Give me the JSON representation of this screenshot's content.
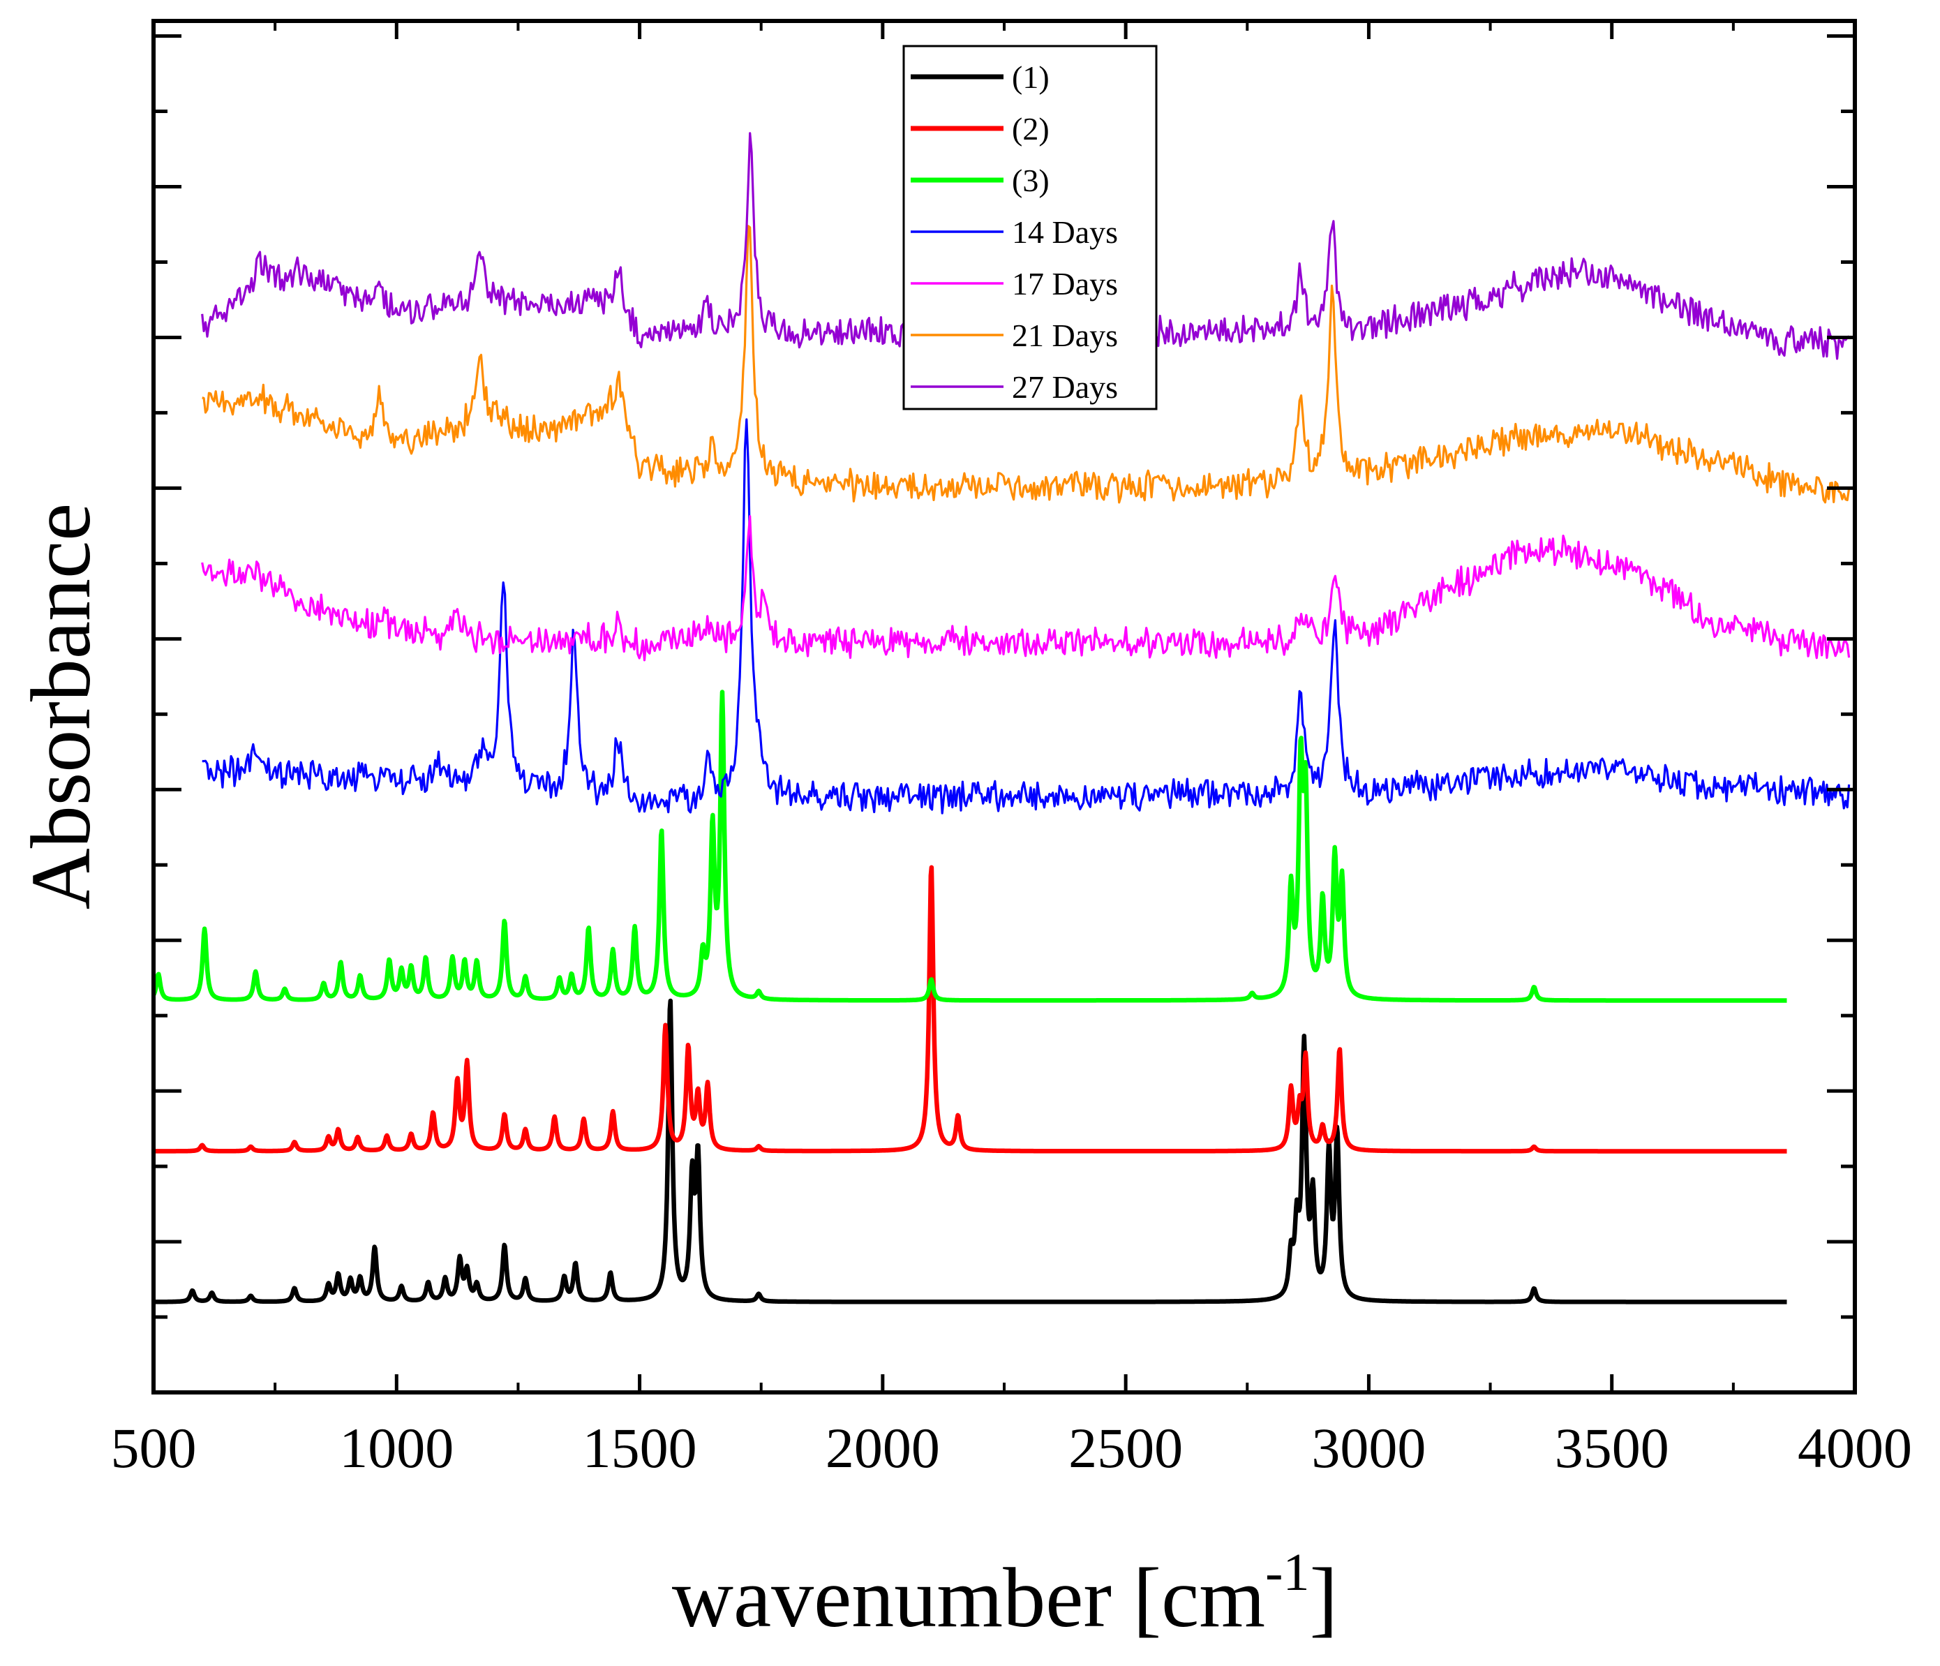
{
  "chart_data": {
    "type": "line",
    "title": "",
    "xlabel": "wavenumber [cm",
    "xlabel_superscript": "-1",
    "xlabel_suffix": "]",
    "ylabel": "Absorbance",
    "xlim": [
      500,
      4000
    ],
    "ylim": [
      0,
      18.2
    ],
    "x_ticks": [
      500,
      1000,
      1500,
      2000,
      2500,
      3000,
      3500,
      4000
    ],
    "y_tick_labels_shown": false,
    "grid": false,
    "legend_position": "top-center",
    "series": [
      {
        "name": "(1)",
        "color": "#000000",
        "line_width": "thick",
        "style": "sharp",
        "offset": 1.2,
        "x_range": [
          500,
          3860
        ],
        "peaks": [
          [
            580,
            0.15
          ],
          [
            620,
            0.12
          ],
          [
            700,
            0.08
          ],
          [
            790,
            0.18
          ],
          [
            860,
            0.22
          ],
          [
            880,
            0.35
          ],
          [
            905,
            0.28
          ],
          [
            925,
            0.3
          ],
          [
            955,
            0.72
          ],
          [
            1010,
            0.2
          ],
          [
            1065,
            0.25
          ],
          [
            1100,
            0.3
          ],
          [
            1130,
            0.55
          ],
          [
            1145,
            0.4
          ],
          [
            1165,
            0.22
          ],
          [
            1222,
            0.75
          ],
          [
            1265,
            0.3
          ],
          [
            1345,
            0.32
          ],
          [
            1368,
            0.5
          ],
          [
            1440,
            0.38
          ],
          [
            1563,
            4.0
          ],
          [
            1608,
            1.55
          ],
          [
            1620,
            1.85
          ],
          [
            1745,
            0.1
          ],
          [
            2840,
            0.55
          ],
          [
            2852,
            0.9
          ],
          [
            2867,
            3.3
          ],
          [
            2885,
            1.3
          ],
          [
            2918,
            1.9
          ],
          [
            2935,
            2.15
          ],
          [
            3340,
            0.18
          ]
        ]
      },
      {
        "name": "(2)",
        "color": "#ff0000",
        "line_width": "thick",
        "style": "sharp",
        "offset": 3.2,
        "x_range": [
          500,
          3860
        ],
        "peaks": [
          [
            600,
            0.08
          ],
          [
            700,
            0.06
          ],
          [
            790,
            0.12
          ],
          [
            860,
            0.18
          ],
          [
            880,
            0.28
          ],
          [
            920,
            0.18
          ],
          [
            980,
            0.2
          ],
          [
            1030,
            0.22
          ],
          [
            1075,
            0.5
          ],
          [
            1125,
            0.9
          ],
          [
            1145,
            1.15
          ],
          [
            1222,
            0.48
          ],
          [
            1265,
            0.28
          ],
          [
            1325,
            0.45
          ],
          [
            1385,
            0.42
          ],
          [
            1445,
            0.52
          ],
          [
            1553,
            1.65
          ],
          [
            1600,
            1.35
          ],
          [
            1620,
            0.7
          ],
          [
            1640,
            0.85
          ],
          [
            1745,
            0.06
          ],
          [
            2100,
            3.8
          ],
          [
            2155,
            0.45
          ],
          [
            2840,
            0.8
          ],
          [
            2858,
            0.5
          ],
          [
            2870,
            1.2
          ],
          [
            2905,
            0.3
          ],
          [
            2940,
            1.35
          ],
          [
            3340,
            0.06
          ]
        ]
      },
      {
        "name": "(3)",
        "color": "#00ff00",
        "line_width": "thick",
        "style": "sharp",
        "offset": 5.2,
        "x_range": [
          500,
          3860
        ],
        "peaks": [
          [
            510,
            0.35
          ],
          [
            605,
            0.95
          ],
          [
            710,
            0.38
          ],
          [
            770,
            0.15
          ],
          [
            850,
            0.22
          ],
          [
            885,
            0.5
          ],
          [
            925,
            0.32
          ],
          [
            985,
            0.52
          ],
          [
            1010,
            0.38
          ],
          [
            1030,
            0.42
          ],
          [
            1060,
            0.55
          ],
          [
            1115,
            0.55
          ],
          [
            1140,
            0.5
          ],
          [
            1165,
            0.5
          ],
          [
            1222,
            1.05
          ],
          [
            1265,
            0.3
          ],
          [
            1335,
            0.28
          ],
          [
            1360,
            0.32
          ],
          [
            1395,
            0.95
          ],
          [
            1445,
            0.65
          ],
          [
            1490,
            0.95
          ],
          [
            1545,
            2.25
          ],
          [
            1630,
            0.55
          ],
          [
            1650,
            2.2
          ],
          [
            1670,
            3.95
          ],
          [
            1745,
            0.1
          ],
          [
            2100,
            0.28
          ],
          [
            2760,
            0.08
          ],
          [
            2840,
            1.4
          ],
          [
            2860,
            2.9
          ],
          [
            2870,
            2.5
          ],
          [
            2905,
            1.25
          ],
          [
            2930,
            1.8
          ],
          [
            2945,
            1.5
          ],
          [
            3340,
            0.18
          ]
        ]
      },
      {
        "name": "14 Days",
        "color": "#0000ff",
        "line_width": "thin",
        "style": "noisy",
        "offset": 7.9,
        "x_range": [
          600,
          3990
        ],
        "baseline": [
          [
            600,
            0.35
          ],
          [
            1000,
            0.2
          ],
          [
            1200,
            0.15
          ],
          [
            1400,
            0.0
          ],
          [
            1500,
            -0.1
          ],
          [
            1700,
            -0.05
          ],
          [
            2000,
            0.0
          ],
          [
            2400,
            0.0
          ],
          [
            2800,
            0.05
          ],
          [
            3000,
            0.05
          ],
          [
            3300,
            0.3
          ],
          [
            3500,
            0.35
          ],
          [
            3700,
            0.15
          ],
          [
            3990,
            0.05
          ]
        ],
        "peaks": [
          [
            710,
            0.3
          ],
          [
            975,
            0.2
          ],
          [
            1085,
            0.3
          ],
          [
            1175,
            0.4
          ],
          [
            1220,
            2.7
          ],
          [
            1365,
            2.1
          ],
          [
            1455,
            0.85
          ],
          [
            1640,
            0.45
          ],
          [
            1720,
            5.1
          ],
          [
            1745,
            0.4
          ],
          [
            2860,
            1.3
          ],
          [
            2930,
            2.2
          ]
        ]
      },
      {
        "name": "17 Days",
        "color": "#ff00ff",
        "line_width": "thin",
        "style": "noisy",
        "offset": 9.95,
        "x_range": [
          600,
          3990
        ],
        "baseline": [
          [
            600,
            0.95
          ],
          [
            700,
            0.9
          ],
          [
            800,
            0.55
          ],
          [
            900,
            0.3
          ],
          [
            1000,
            0.15
          ],
          [
            1200,
            0.05
          ],
          [
            1400,
            0.05
          ],
          [
            1500,
            -0.05
          ],
          [
            1600,
            0.05
          ],
          [
            1760,
            0.0
          ],
          [
            2000,
            0.0
          ],
          [
            2400,
            0.0
          ],
          [
            2800,
            0.0
          ],
          [
            3000,
            0.1
          ],
          [
            3150,
            0.65
          ],
          [
            3300,
            1.15
          ],
          [
            3400,
            1.25
          ],
          [
            3500,
            1.05
          ],
          [
            3600,
            0.75
          ],
          [
            3700,
            0.3
          ],
          [
            3850,
            0.05
          ],
          [
            3990,
            -0.05
          ]
        ],
        "peaks": [
          [
            975,
            0.2
          ],
          [
            1125,
            0.28
          ],
          [
            1455,
            0.3
          ],
          [
            1640,
            0.28
          ],
          [
            1725,
            1.5
          ],
          [
            1755,
            0.5
          ],
          [
            2860,
            0.4
          ],
          [
            2930,
            0.95
          ]
        ]
      },
      {
        "name": "21 Days",
        "color": "#ff8c00",
        "line_width": "thin",
        "style": "noisy",
        "offset": 12.0,
        "x_range": [
          600,
          3990
        ],
        "baseline": [
          [
            600,
            1.1
          ],
          [
            700,
            1.2
          ],
          [
            800,
            1.0
          ],
          [
            900,
            0.75
          ],
          [
            1000,
            0.6
          ],
          [
            1100,
            0.75
          ],
          [
            1200,
            0.9
          ],
          [
            1300,
            0.75
          ],
          [
            1400,
            0.95
          ],
          [
            1460,
            1.1
          ],
          [
            1500,
            0.3
          ],
          [
            1600,
            0.2
          ],
          [
            1760,
            0.1
          ],
          [
            2000,
            0.0
          ],
          [
            2400,
            0.0
          ],
          [
            2800,
            0.05
          ],
          [
            2850,
            0.1
          ],
          [
            3000,
            0.2
          ],
          [
            3300,
            0.65
          ],
          [
            3500,
            0.8
          ],
          [
            3600,
            0.55
          ],
          [
            3750,
            0.35
          ],
          [
            3850,
            0.05
          ],
          [
            3990,
            -0.05
          ]
        ],
        "peaks": [
          [
            965,
            0.5
          ],
          [
            1170,
            1.0
          ],
          [
            1455,
            0.35
          ],
          [
            1650,
            0.35
          ],
          [
            1725,
            3.6
          ],
          [
            2860,
            1.1
          ],
          [
            2925,
            2.4
          ]
        ]
      },
      {
        "name": "27 Days",
        "color": "#9400d3",
        "line_width": "thin",
        "style": "noisy",
        "offset": 14.05,
        "x_range": [
          600,
          3990
        ],
        "baseline": [
          [
            600,
            0.05
          ],
          [
            700,
            0.6
          ],
          [
            800,
            0.8
          ],
          [
            900,
            0.5
          ],
          [
            1000,
            0.25
          ],
          [
            1100,
            0.35
          ],
          [
            1200,
            0.45
          ],
          [
            1300,
            0.35
          ],
          [
            1400,
            0.45
          ],
          [
            1460,
            0.3
          ],
          [
            1500,
            -0.05
          ],
          [
            1600,
            0.05
          ],
          [
            1760,
            0.0
          ],
          [
            2000,
            0.0
          ],
          [
            2400,
            0.0
          ],
          [
            2800,
            0.05
          ],
          [
            2850,
            0.1
          ],
          [
            3000,
            0.05
          ],
          [
            3200,
            0.4
          ],
          [
            3400,
            0.8
          ],
          [
            3500,
            0.75
          ],
          [
            3600,
            0.45
          ],
          [
            3750,
            0.05
          ],
          [
            3850,
            -0.1
          ],
          [
            3990,
            -0.15
          ]
        ],
        "peaks": [
          [
            720,
            0.35
          ],
          [
            965,
            0.4
          ],
          [
            1170,
            0.75
          ],
          [
            1455,
            0.55
          ],
          [
            1640,
            0.25
          ],
          [
            1728,
            2.6
          ],
          [
            2860,
            0.7
          ],
          [
            2925,
            1.35
          ]
        ]
      }
    ]
  }
}
